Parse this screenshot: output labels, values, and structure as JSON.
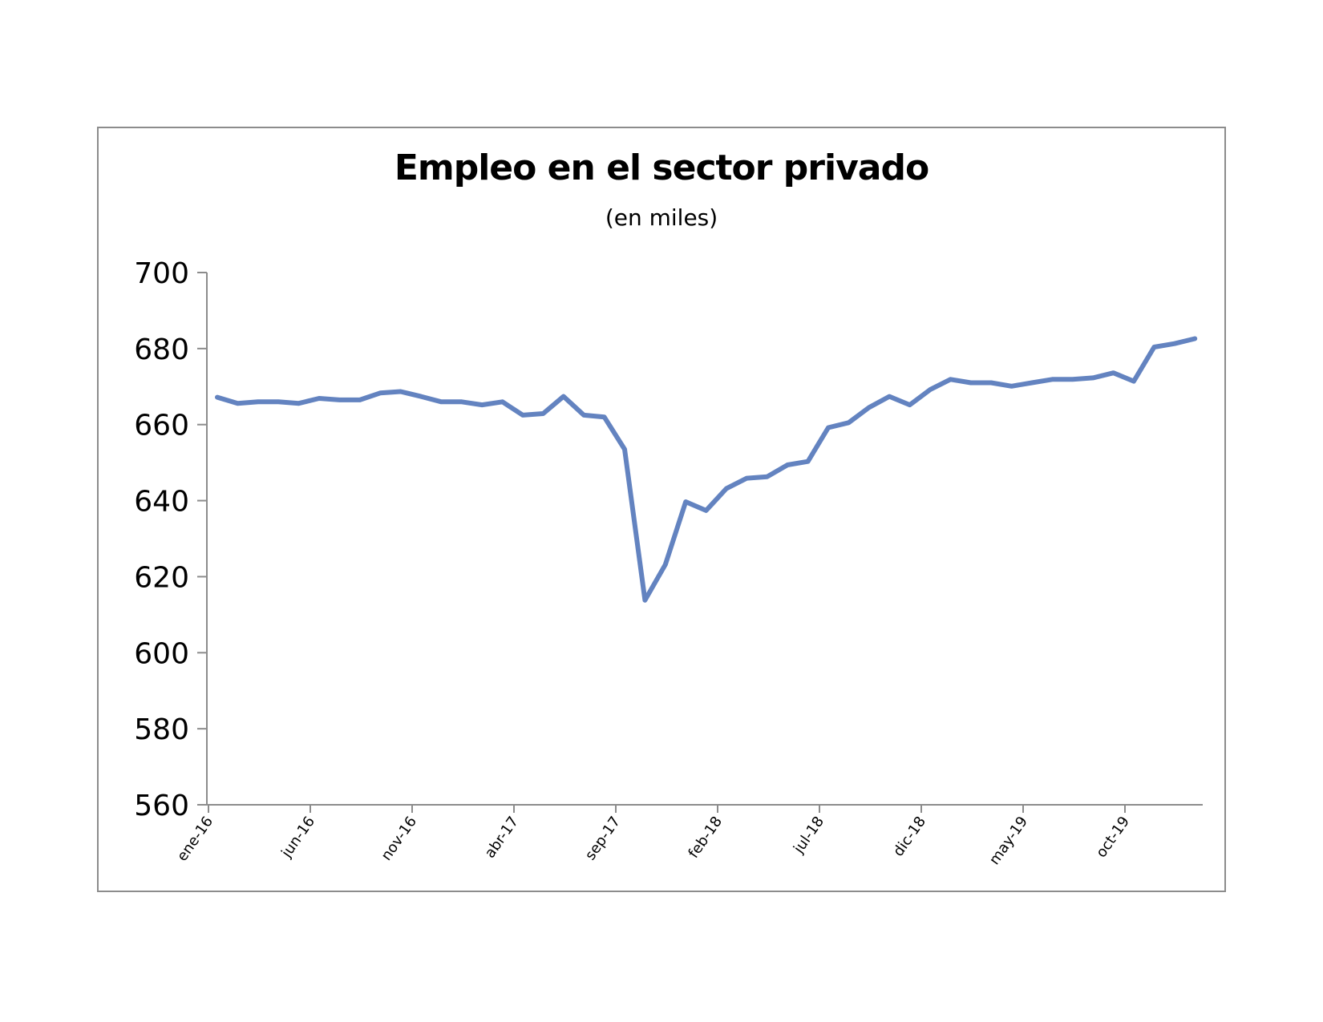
{
  "chart_data": {
    "type": "line",
    "title": "Empleo en el sector privado",
    "subtitle": "(en miles)",
    "xlabel": "",
    "ylabel": "",
    "ylim": [
      560,
      700
    ],
    "yticks": [
      560,
      580,
      600,
      620,
      640,
      660,
      680,
      700
    ],
    "xtick_labels": [
      "ene-16",
      "jun-16",
      "nov-16",
      "abr-17",
      "sep-17",
      "feb-18",
      "jul-18",
      "dic-18",
      "may-19",
      "oct-19"
    ],
    "xtick_every": 5,
    "grid": false,
    "legend": "none",
    "line_color": "#6383c0",
    "series": [
      {
        "values": [
          667.2,
          665.6,
          666.0,
          666.0,
          665.6,
          666.9,
          666.5,
          666.5,
          668.3,
          668.7,
          667.4,
          666.0,
          666.0,
          665.2,
          666.0,
          662.5,
          662.9,
          667.4,
          662.5,
          662.0,
          653.5,
          613.8,
          623.2,
          639.7,
          637.4,
          643.2,
          645.9,
          646.3,
          649.4,
          650.3,
          659.2,
          660.5,
          664.5,
          667.4,
          665.2,
          669.2,
          671.9,
          671.0,
          671.0,
          670.1,
          671.0,
          671.9,
          671.9,
          672.3,
          673.6,
          671.4,
          680.4,
          681.3,
          682.6
        ]
      }
    ]
  }
}
